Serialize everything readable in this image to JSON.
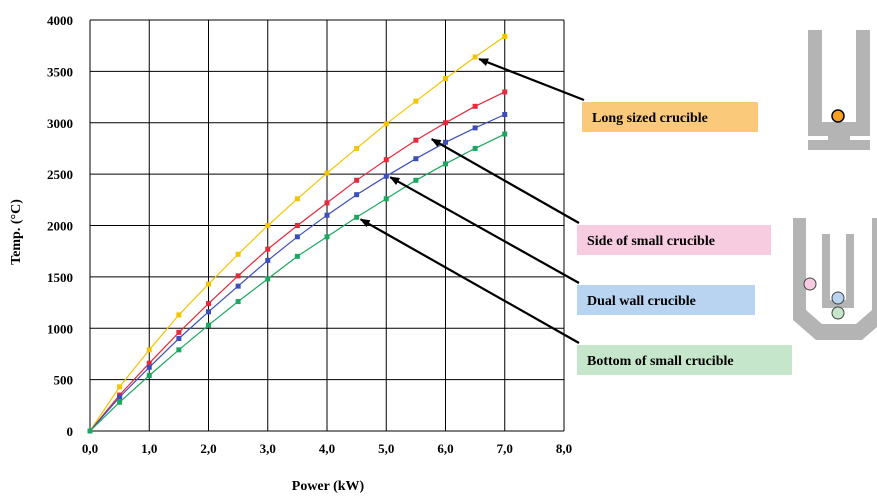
{
  "chart_data": {
    "type": "line",
    "xlabel": "Power (kW)",
    "ylabel": "Temp. (°C)",
    "xlim": [
      0,
      8
    ],
    "ylim": [
      0,
      4000
    ],
    "x_ticks": [
      "0,0",
      "1,0",
      "2,0",
      "3,0",
      "4,0",
      "5,0",
      "6,0",
      "7,0",
      "8,0"
    ],
    "y_ticks": [
      "0",
      "500",
      "1000",
      "1500",
      "2000",
      "2500",
      "3000",
      "3500",
      "4000"
    ],
    "grid": true,
    "x": [
      0,
      0.5,
      1.0,
      1.5,
      2.0,
      2.5,
      3.0,
      3.5,
      4.0,
      4.5,
      5.0,
      5.5,
      6.0,
      6.5,
      7.0
    ],
    "series": [
      {
        "name": "Long sized crucible",
        "color": "#f5c400",
        "label_bg": "#fbc97a",
        "values": [
          0,
          430,
          790,
          1130,
          1430,
          1720,
          2000,
          2260,
          2510,
          2750,
          2990,
          3210,
          3430,
          3640,
          3840
        ]
      },
      {
        "name": "Side of small crucible",
        "color": "#e8283c",
        "label_bg": "#f8cce0",
        "values": [
          0,
          350,
          660,
          960,
          1240,
          1510,
          1770,
          2000,
          2220,
          2440,
          2640,
          2830,
          3000,
          3160,
          3300
        ]
      },
      {
        "name": "Dual wall crucible",
        "color": "#3a4fb8",
        "label_bg": "#b8d4f0",
        "values": [
          0,
          330,
          620,
          900,
          1160,
          1410,
          1660,
          1890,
          2100,
          2300,
          2480,
          2650,
          2810,
          2950,
          3080
        ]
      },
      {
        "name": "Bottom of small crucible",
        "color": "#1aa860",
        "label_bg": "#c6e6cc",
        "values": [
          0,
          280,
          540,
          790,
          1030,
          1260,
          1480,
          1700,
          1890,
          2080,
          2260,
          2440,
          2600,
          2750,
          2890
        ]
      }
    ],
    "annotations": [
      {
        "series": 0,
        "x": 6.5,
        "y": 3640
      },
      {
        "series": 1,
        "x": 5.7,
        "y": 2860
      },
      {
        "series": 2,
        "x": 5.0,
        "y": 2490
      },
      {
        "series": 3,
        "x": 4.5,
        "y": 2080
      }
    ]
  }
}
